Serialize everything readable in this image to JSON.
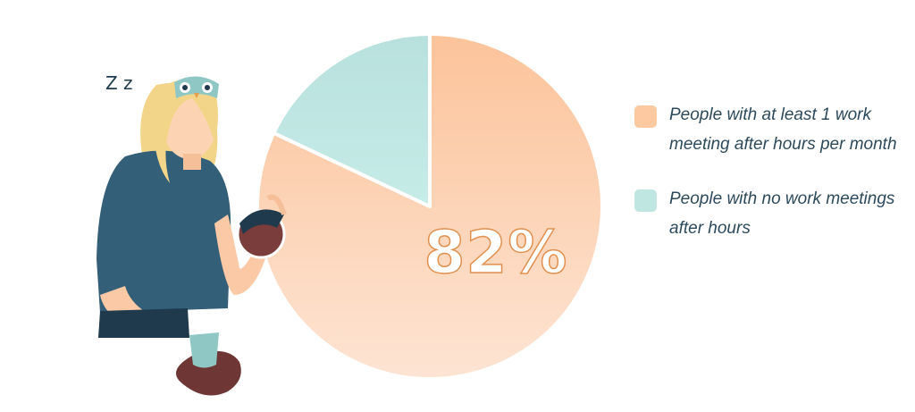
{
  "chart_data": {
    "type": "pie",
    "slices": [
      {
        "label": "People with at least 1 work meeting after hours per month",
        "value": 82,
        "color": "#fcc9a0"
      },
      {
        "label": "People with no work meetings after hours",
        "value": 18,
        "color": "#bfe6e1"
      }
    ],
    "data_label": "82%",
    "legend_position": "right"
  },
  "illustration": {
    "snore": "Z z"
  }
}
